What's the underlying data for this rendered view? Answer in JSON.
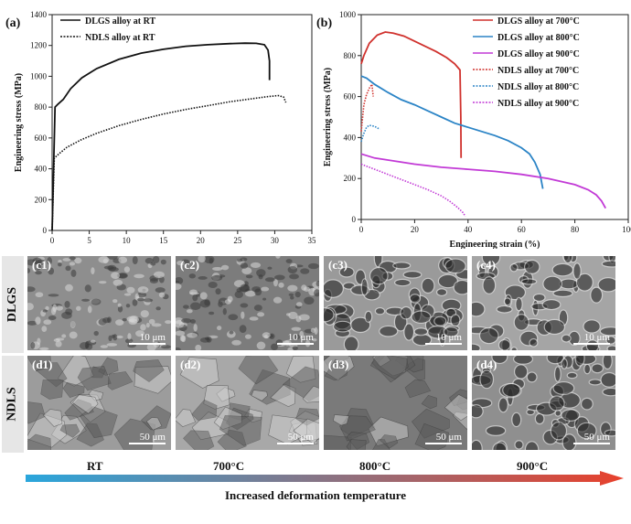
{
  "figure": {
    "panel_a_letter": "(a)",
    "panel_b_letter": "(b)",
    "row_label_top": "DLGS",
    "row_label_bottom": "NDLS",
    "temperatures": [
      "RT",
      "700°C",
      "800°C",
      "900°C"
    ],
    "bottom_title": "Increased deformation temperature",
    "arrow_colors": [
      "#2aa6dc",
      "#e8412c"
    ]
  },
  "sem_images": [
    {
      "tag": "(c1)",
      "scale": "10 μm",
      "base": "#8e8e8e",
      "style": "dimple-fine"
    },
    {
      "tag": "(c2)",
      "scale": "10 μm",
      "base": "#7c7c7c",
      "style": "dimple-fine"
    },
    {
      "tag": "(c3)",
      "scale": "10 μm",
      "base": "#9a9a9a",
      "style": "dimple-large"
    },
    {
      "tag": "(c4)",
      "scale": "10 μm",
      "base": "#a5a5a5",
      "style": "dimple-large"
    },
    {
      "tag": "(d1)",
      "scale": "50 μm",
      "base": "#9c9c9c",
      "style": "facet"
    },
    {
      "tag": "(d2)",
      "scale": "50 μm",
      "base": "#a8a8a8",
      "style": "facet"
    },
    {
      "tag": "(d3)",
      "scale": "50 μm",
      "base": "#7a7a7a",
      "style": "facet"
    },
    {
      "tag": "(d4)",
      "scale": "50 μm",
      "base": "#8f8f8f",
      "style": "dimple-large"
    }
  ],
  "chart_data": [
    {
      "type": "line",
      "xlabel": "Engineering strain (%)",
      "ylabel": "Engineering stress (MPa)",
      "xlim": [
        0,
        35
      ],
      "ylim": [
        0,
        1400
      ],
      "xticks": [
        0,
        5,
        10,
        15,
        20,
        25,
        30,
        35
      ],
      "yticks": [
        0,
        200,
        400,
        600,
        800,
        1000,
        1200,
        1400
      ],
      "legend_position": "top-left",
      "series": [
        {
          "name": "DLGS alloy at RT",
          "color": "#111111",
          "dash": "solid",
          "x": [
            0,
            0.4,
            0.8,
            1.5,
            2.5,
            4,
            6,
            9,
            12,
            15,
            18,
            21,
            24,
            26,
            27.5,
            28.6,
            29.1,
            29.3,
            29.3
          ],
          "y": [
            0,
            800,
            820,
            850,
            920,
            990,
            1050,
            1110,
            1150,
            1175,
            1195,
            1205,
            1212,
            1215,
            1214,
            1205,
            1170,
            1100,
            975
          ]
        },
        {
          "name": "NDLS alloy at RT",
          "color": "#111111",
          "dash": "dotted",
          "x": [
            0,
            0.3,
            1,
            2,
            4,
            6,
            9,
            12,
            15,
            18,
            21,
            24,
            27,
            29,
            30.5,
            31.2,
            31.5
          ],
          "y": [
            0,
            470,
            500,
            540,
            590,
            630,
            680,
            720,
            755,
            785,
            810,
            835,
            855,
            868,
            875,
            865,
            830
          ]
        }
      ]
    },
    {
      "type": "line",
      "xlabel": "Engineering strain (%)",
      "ylabel": "Engineering stress (MPa)",
      "xlim": [
        0,
        100
      ],
      "ylim": [
        0,
        1000
      ],
      "xticks": [
        0,
        20,
        40,
        60,
        80,
        100
      ],
      "yticks": [
        0,
        200,
        400,
        600,
        800,
        1000
      ],
      "legend_position": "top-right",
      "series": [
        {
          "name": "DLGS alloy at 700°C",
          "color": "#d0312d",
          "dash": "solid",
          "x": [
            0,
            1,
            3,
            6,
            9,
            12,
            16,
            20,
            24,
            28,
            32,
            35,
            37,
            37.3,
            37.4
          ],
          "y": [
            760,
            800,
            860,
            900,
            915,
            910,
            895,
            870,
            845,
            820,
            790,
            760,
            730,
            500,
            300
          ]
        },
        {
          "name": "DLGS alloy at 800°C",
          "color": "#2b84c6",
          "dash": "solid",
          "x": [
            0,
            2,
            5,
            10,
            15,
            20,
            25,
            30,
            35,
            40,
            45,
            50,
            55,
            60,
            63,
            65,
            67,
            68
          ],
          "y": [
            700,
            690,
            660,
            620,
            585,
            560,
            530,
            500,
            470,
            450,
            430,
            410,
            385,
            350,
            320,
            280,
            220,
            150
          ]
        },
        {
          "name": "DLGS alloy at 900°C",
          "color": "#c23ad6",
          "dash": "solid",
          "x": [
            0,
            5,
            10,
            20,
            30,
            40,
            50,
            60,
            70,
            80,
            85,
            88,
            90,
            91.5
          ],
          "y": [
            320,
            300,
            290,
            270,
            255,
            245,
            235,
            220,
            200,
            170,
            145,
            120,
            90,
            55
          ]
        },
        {
          "name": "NDLS alloy at 700°C",
          "color": "#d0312d",
          "dash": "dotted",
          "x": [
            0,
            1,
            2,
            3,
            4,
            4.5
          ],
          "y": [
            430,
            560,
            610,
            640,
            660,
            600
          ]
        },
        {
          "name": "NDLS alloy at 800°C",
          "color": "#2b84c6",
          "dash": "dotted",
          "x": [
            0,
            1,
            2,
            3,
            5,
            7
          ],
          "y": [
            380,
            420,
            450,
            460,
            455,
            440
          ]
        },
        {
          "name": "NDLS alloy at 900°C",
          "color": "#c23ad6",
          "dash": "dotted",
          "x": [
            0,
            3,
            6,
            10,
            15,
            20,
            25,
            30,
            33,
            36,
            38,
            39
          ],
          "y": [
            270,
            255,
            240,
            220,
            195,
            170,
            145,
            115,
            90,
            60,
            35,
            15
          ]
        }
      ]
    }
  ]
}
